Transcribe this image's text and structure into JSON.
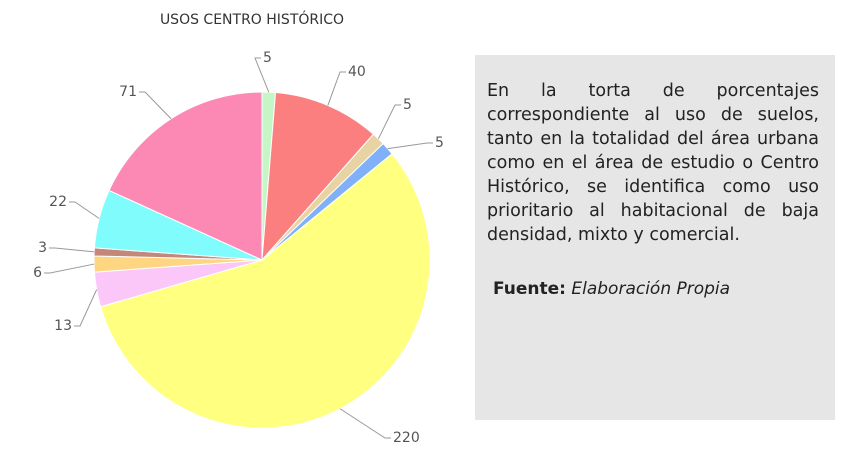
{
  "chart_data": {
    "type": "pie",
    "title": "USOS CENTRO HISTÓRICO",
    "values": [
      5,
      40,
      5,
      5,
      220,
      13,
      6,
      3,
      22,
      71
    ],
    "colors": [
      "#c6f5c6",
      "#fb7f7f",
      "#e8d3a3",
      "#7fb0f8",
      "#ffff80",
      "#fbc6f8",
      "#fed580",
      "#c4887a",
      "#80fcfd",
      "#fc88b4"
    ]
  },
  "note": {
    "text": "En la torta de porcentajes correspondiente al uso de suelos, tanto en la totalidad del área urbana como en el área de estudio o Centro Histórico, se identifica como uso prioritario al habitacional de baja densidad, mixto y comercial.",
    "source_label": "Fuente:",
    "source": "Elaboración Propia"
  }
}
